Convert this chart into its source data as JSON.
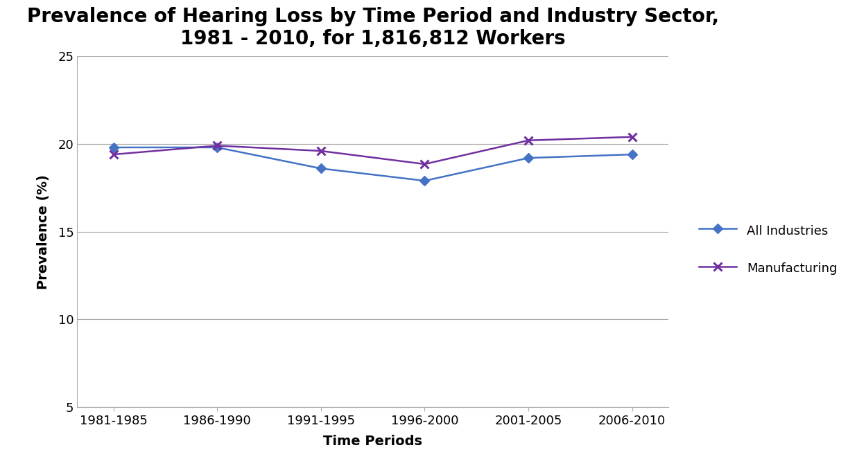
{
  "title": "Prevalence of Hearing Loss by Time Period and Industry Sector,\n1981 - 2010, for 1,816,812 Workers",
  "xlabel": "Time Periods",
  "ylabel": "Prevalence (%)",
  "time_periods": [
    "1981-1985",
    "1986-1990",
    "1991-1995",
    "1996-2000",
    "2001-2005",
    "2006-2010"
  ],
  "all_industries": [
    19.8,
    19.8,
    18.6,
    17.9,
    19.2,
    19.4
  ],
  "manufacturing": [
    19.4,
    19.9,
    19.6,
    18.85,
    20.2,
    20.4
  ],
  "all_industries_color": "#4472C4",
  "manufacturing_color": "#7030A0",
  "ylim_min": 5,
  "ylim_max": 25,
  "yticks": [
    5,
    10,
    15,
    20,
    25
  ],
  "background_color": "#FFFFFF",
  "grid_color": "#AAAAAA",
  "title_fontsize": 20,
  "axis_label_fontsize": 14,
  "tick_fontsize": 13,
  "legend_fontsize": 13
}
